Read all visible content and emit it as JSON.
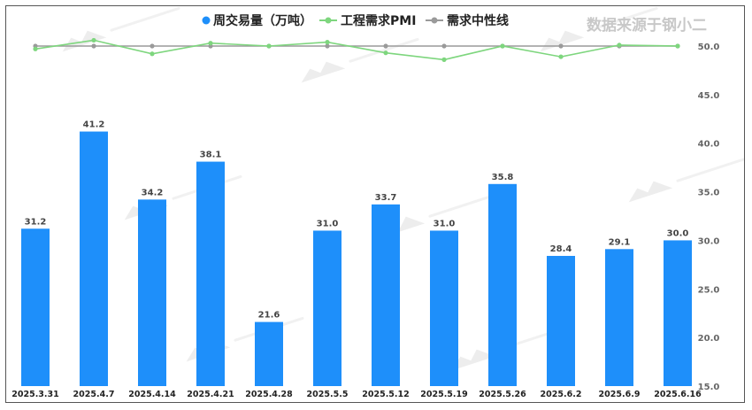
{
  "brand": "数据来源于钢小二",
  "chart_data": {
    "type": "bar",
    "title": "",
    "categories": [
      "2025.3.31",
      "2025.4.7",
      "2025.4.14",
      "2025.4.21",
      "2025.4.28",
      "2025.5.5",
      "2025.5.12",
      "2025.5.19",
      "2025.5.26",
      "2025.6.2",
      "2025.6.9",
      "2025.6.16"
    ],
    "series": [
      {
        "name": "周交易量（万吨）",
        "type": "bar",
        "color": "#1e8ffa",
        "values": [
          31.2,
          41.2,
          34.2,
          38.1,
          21.6,
          31.0,
          33.7,
          31.0,
          35.8,
          28.4,
          29.1,
          30.0
        ],
        "labels": [
          "31.2",
          "41.2",
          "34.2",
          "38.1",
          "21.6",
          "31.0",
          "33.7",
          "31.0",
          "35.8",
          "28.4",
          "29.1",
          "30.0"
        ]
      },
      {
        "name": "工程需求PMI",
        "type": "line",
        "color": "#7ed67e",
        "values": [
          49.7,
          50.6,
          49.2,
          50.3,
          50.0,
          50.4,
          49.3,
          48.6,
          50.0,
          48.9,
          50.1,
          50.0
        ]
      },
      {
        "name": "需求中性线",
        "type": "line",
        "color": "#9a9a9a",
        "values": [
          50.0,
          50.0,
          50.0,
          50.0,
          50.0,
          50.0,
          50.0,
          50.0,
          50.0,
          50.0,
          50.0,
          50.0
        ]
      }
    ],
    "y_right": {
      "min": 15.0,
      "max": 50.0,
      "ticks": [
        "50.0",
        "45.0",
        "40.0",
        "35.0",
        "30.0",
        "25.0",
        "20.0",
        "15.0"
      ]
    },
    "legend_position": "top",
    "grid": false
  }
}
